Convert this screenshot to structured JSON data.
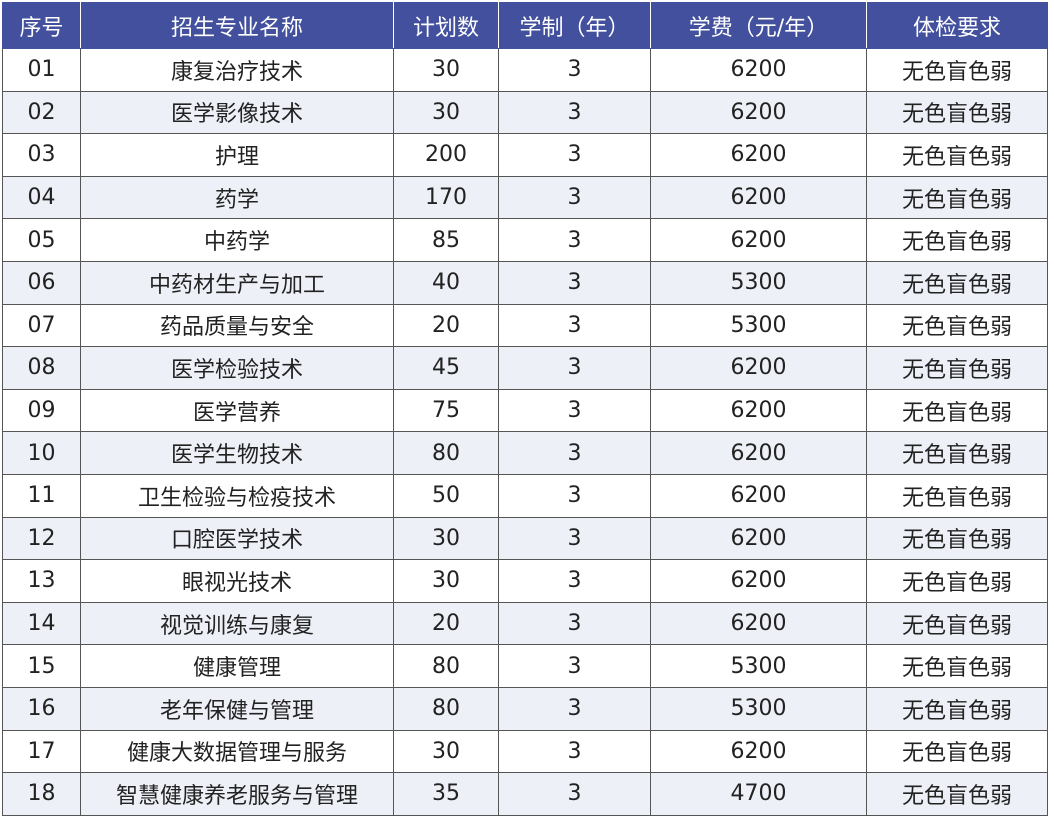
{
  "table": {
    "header": [
      "序号",
      "招生专业名称",
      "计划数",
      "学制（年）",
      "学费（元/年）",
      "体检要求"
    ],
    "rows": [
      [
        "01",
        "康复治疗技术",
        "30",
        "3",
        "6200",
        "无色盲色弱"
      ],
      [
        "02",
        "医学影像技术",
        "30",
        "3",
        "6200",
        "无色盲色弱"
      ],
      [
        "03",
        "护理",
        "200",
        "3",
        "6200",
        "无色盲色弱"
      ],
      [
        "04",
        "药学",
        "170",
        "3",
        "6200",
        "无色盲色弱"
      ],
      [
        "05",
        "中药学",
        "85",
        "3",
        "6200",
        "无色盲色弱"
      ],
      [
        "06",
        "中药材生产与加工",
        "40",
        "3",
        "5300",
        "无色盲色弱"
      ],
      [
        "07",
        "药品质量与安全",
        "20",
        "3",
        "5300",
        "无色盲色弱"
      ],
      [
        "08",
        "医学检验技术",
        "45",
        "3",
        "6200",
        "无色盲色弱"
      ],
      [
        "09",
        "医学营养",
        "75",
        "3",
        "6200",
        "无色盲色弱"
      ],
      [
        "10",
        "医学生物技术",
        "80",
        "3",
        "6200",
        "无色盲色弱"
      ],
      [
        "11",
        "卫生检验与检疫技术",
        "50",
        "3",
        "6200",
        "无色盲色弱"
      ],
      [
        "12",
        "口腔医学技术",
        "30",
        "3",
        "6200",
        "无色盲色弱"
      ],
      [
        "13",
        "眼视光技术",
        "30",
        "3",
        "6200",
        "无色盲色弱"
      ],
      [
        "14",
        "视觉训练与康复",
        "20",
        "3",
        "6200",
        "无色盲色弱"
      ],
      [
        "15",
        "健康管理",
        "80",
        "3",
        "5300",
        "无色盲色弱"
      ],
      [
        "16",
        "老年保健与管理",
        "80",
        "3",
        "5300",
        "无色盲色弱"
      ],
      [
        "17",
        "健康大数据管理与服务",
        "30",
        "3",
        "6200",
        "无色盲色弱"
      ],
      [
        "18",
        "智慧健康养老服务与管理",
        "35",
        "3",
        "4700",
        "无色盲色弱"
      ]
    ]
  }
}
